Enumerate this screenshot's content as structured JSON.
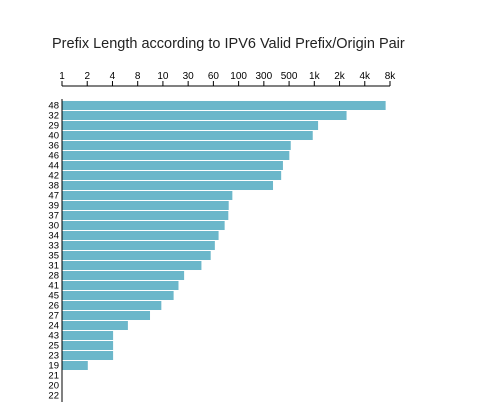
{
  "chart_data": {
    "type": "bar",
    "orientation": "horizontal",
    "title": "Prefix Length according to IPV6 Valid Prefix/Origin Pair",
    "x_scale": "log2",
    "x_axis_position": "top",
    "xlim": [
      1,
      8000
    ],
    "x_ticks": [
      "1",
      "2",
      "4",
      "8",
      "10",
      "30",
      "60",
      "100",
      "300",
      "500",
      "1k",
      "2k",
      "4k",
      "8k"
    ],
    "categories": [
      "48",
      "32",
      "29",
      "40",
      "36",
      "46",
      "44",
      "42",
      "38",
      "47",
      "39",
      "37",
      "30",
      "34",
      "33",
      "35",
      "31",
      "28",
      "41",
      "45",
      "26",
      "27",
      "24",
      "43",
      "25",
      "23",
      "19",
      "21",
      "20",
      "22"
    ],
    "values": [
      7000,
      2400,
      1100,
      950,
      520,
      500,
      420,
      400,
      320,
      105,
      95,
      94,
      85,
      72,
      65,
      58,
      45,
      28,
      24,
      21,
      15,
      11,
      6,
      4,
      4,
      4,
      2,
      1,
      1,
      1
    ],
    "bar_color": "#6cb7ca",
    "grid": false,
    "legend": "none"
  }
}
